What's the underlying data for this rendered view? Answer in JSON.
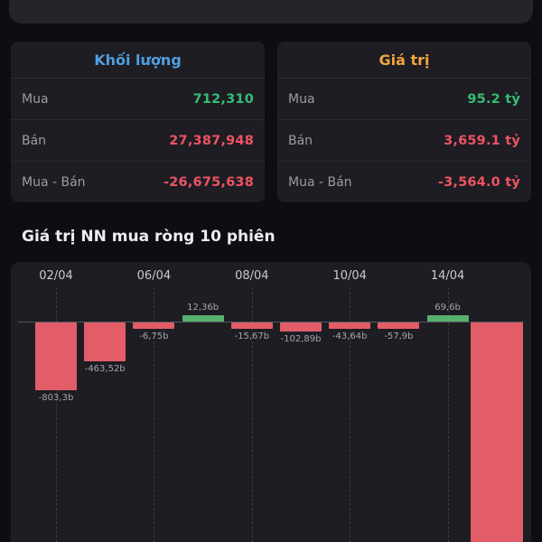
{
  "colors": {
    "blue": "#4f9fe0",
    "orange": "#f0a43c",
    "green": "#36bd74",
    "red": "#ef5363",
    "barRed": "#e35d68",
    "barGreen": "#57b16b"
  },
  "cards": {
    "volume": {
      "title": "Khối lượng",
      "rows": [
        {
          "label": "Mua",
          "value": "712,310",
          "color": "green"
        },
        {
          "label": "Bán",
          "value": "27,387,948",
          "color": "red"
        },
        {
          "label": "Mua - Bán",
          "value": "-26,675,638",
          "color": "red"
        }
      ]
    },
    "value": {
      "title": "Giá trị",
      "rows": [
        {
          "label": "Mua",
          "value": "95.2 tỷ",
          "color": "green"
        },
        {
          "label": "Bán",
          "value": "3,659.1 tỷ",
          "color": "red"
        },
        {
          "label": "Mua - Bán",
          "value": "-3,564.0 tỷ",
          "color": "red"
        }
      ]
    }
  },
  "section_title": "Giá trị NN mua ròng 10 phiên",
  "chart_data": {
    "type": "bar",
    "title": "Giá trị NN mua ròng 10 phiên",
    "unit": "b",
    "x_ticks": [
      "02/04",
      "06/04",
      "08/04",
      "10/04",
      "14/04"
    ],
    "bars": [
      {
        "label": "-803,3b",
        "value": -803.3,
        "color": "red"
      },
      {
        "label": "-463,52b",
        "value": -463.52,
        "color": "red"
      },
      {
        "label": "-6,75b",
        "value": -6.75,
        "color": "red"
      },
      {
        "label": "12,36b",
        "value": 12.36,
        "color": "green"
      },
      {
        "label": "-15,67b",
        "value": -15.67,
        "color": "red"
      },
      {
        "label": "-102,89b",
        "value": -102.89,
        "color": "red"
      },
      {
        "label": "-43,64b",
        "value": -43.64,
        "color": "red"
      },
      {
        "label": "-57,9b",
        "value": -57.9,
        "color": "red"
      },
      {
        "label": "69,6b",
        "value": 69.6,
        "color": "green"
      },
      {
        "label": "",
        "value": null,
        "color": "red",
        "clipped": true
      }
    ],
    "legend": false,
    "grid": "dashed-vertical"
  }
}
